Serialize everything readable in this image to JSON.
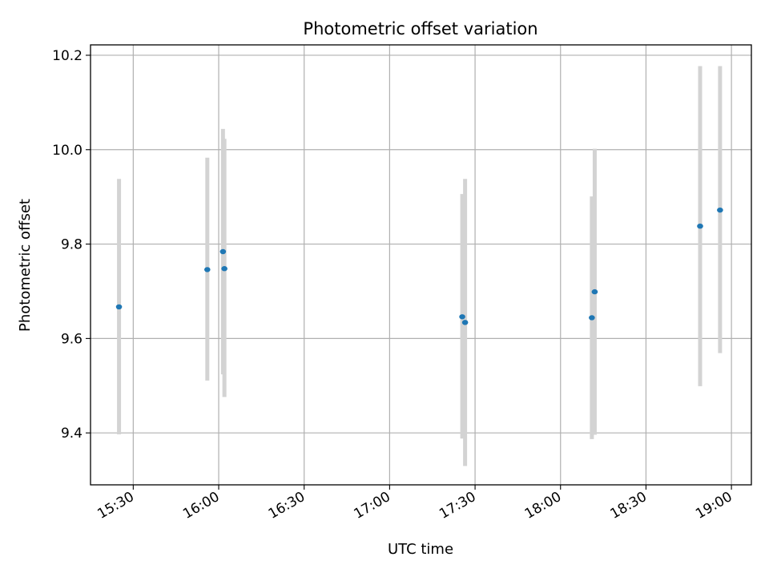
{
  "chart_data": {
    "type": "scatter",
    "title": "Photometric offset variation",
    "xlabel": "UTC time",
    "ylabel": "Photometric offset",
    "x_tick_labels": [
      "15:30",
      "16:00",
      "16:30",
      "17:00",
      "17:30",
      "18:00",
      "18:30",
      "19:00"
    ],
    "y_tick_labels": [
      "9.4",
      "9.6",
      "9.8",
      "10.0",
      "10.2"
    ],
    "y_ticks": [
      9.4,
      9.6,
      9.8,
      10.0,
      10.2
    ],
    "x_ticks": [
      "15:30",
      "16:00",
      "16:30",
      "17:00",
      "17:30",
      "18:00",
      "18:30",
      "19:00"
    ],
    "xlim": [
      "15:15",
      "19:07"
    ],
    "ylim": [
      9.29,
      10.222
    ],
    "grid": true,
    "colors": {
      "point": "#1f77b4",
      "errorbar": "#d3d3d3"
    },
    "points": [
      {
        "x": "15:25",
        "y": 9.667,
        "ylow": 9.397,
        "yhigh": 9.938
      },
      {
        "x": "15:56",
        "y": 9.746,
        "ylow": 9.511,
        "yhigh": 9.983
      },
      {
        "x": "16:01.5",
        "y": 9.784,
        "ylow": 9.524,
        "yhigh": 10.044
      },
      {
        "x": "16:02",
        "y": 9.748,
        "ylow": 9.476,
        "yhigh": 10.023
      },
      {
        "x": "17:25.5",
        "y": 9.646,
        "ylow": 9.388,
        "yhigh": 9.906
      },
      {
        "x": "17:26.5",
        "y": 9.634,
        "ylow": 9.33,
        "yhigh": 9.938
      },
      {
        "x": "18:11",
        "y": 9.644,
        "ylow": 9.387,
        "yhigh": 9.901
      },
      {
        "x": "18:12",
        "y": 9.699,
        "ylow": 9.396,
        "yhigh": 10.002
      },
      {
        "x": "18:49",
        "y": 9.838,
        "ylow": 9.499,
        "yhigh": 10.177
      },
      {
        "x": "18:56",
        "y": 9.872,
        "ylow": 9.569,
        "yhigh": 10.177
      }
    ]
  }
}
